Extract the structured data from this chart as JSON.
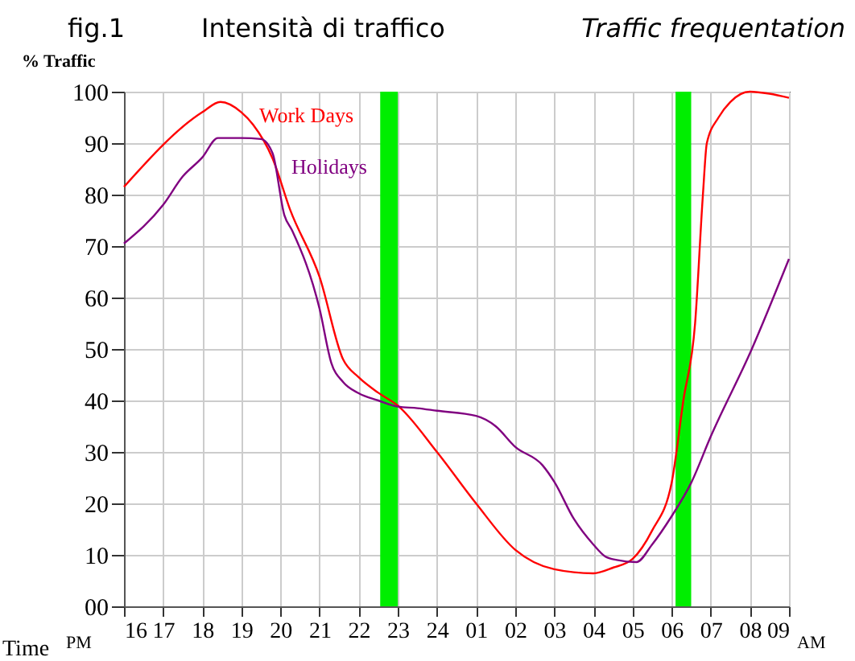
{
  "chart_data": {
    "type": "line",
    "title": "Intensità di traffico",
    "subtitle": "Traffic frequentation",
    "xlabel": "Time",
    "ylabel": "% Traffic",
    "annotations": [
      "fig.1",
      "PM",
      "AM"
    ],
    "xlim": [
      "--01-01T16:00",
      "--01-02T09:00"
    ],
    "xticks": [
      {
        "value": "--01-01T16:00",
        "label": "16"
      },
      {
        "value": "--01-01T17:00",
        "label": "17"
      },
      {
        "value": "--01-01T18:00",
        "label": "18"
      },
      {
        "value": "--01-01T19:00",
        "label": "19"
      },
      {
        "value": "--01-01T20:00",
        "label": "20"
      },
      {
        "value": "--01-01T21:00",
        "label": "21"
      },
      {
        "value": "--01-01T22:00",
        "label": "22"
      },
      {
        "value": "--01-01T23:00",
        "label": "23"
      },
      {
        "value": "--01-02T00:00",
        "label": "24"
      },
      {
        "value": "--01-02T01:00",
        "label": "01"
      },
      {
        "value": "--01-02T02:00",
        "label": "02"
      },
      {
        "value": "--01-02T03:00",
        "label": "03"
      },
      {
        "value": "--01-02T04:00",
        "label": "04"
      },
      {
        "value": "--01-02T05:00",
        "label": "05"
      },
      {
        "value": "--01-02T06:00",
        "label": "06"
      },
      {
        "value": "--01-02T07:00",
        "label": "07"
      },
      {
        "value": "--01-02T08:00",
        "label": "08"
      },
      {
        "value": "--01-02T09:00",
        "label": "09"
      }
    ],
    "ylim": [
      0,
      100
    ],
    "yticks": [
      {
        "value": 0,
        "label": "00"
      },
      10,
      20,
      30,
      40,
      50,
      60,
      70,
      80,
      90,
      100
    ],
    "grid": true,
    "legend": false,
    "marker": "none",
    "line_style": "solid",
    "bands": [
      {
        "axis": "x",
        "from": "--01-01T22:33",
        "to": "--01-01T23:00",
        "color": "#00ee00"
      },
      {
        "axis": "x",
        "from": "--01-02T06:06",
        "to": "--01-02T06:30",
        "color": "#00ee00"
      }
    ],
    "series": [
      {
        "name": "Work Days",
        "color": "#ff0000",
        "x": [
          "--01-01T16:00",
          "--01-01T18:00",
          "--01-01T18:28",
          "--01-01T19:00",
          "--01-01T19:18",
          "--01-01T19:48",
          "--01-01T20:15",
          "--01-01T21:00",
          "--01-01T21:36",
          "--01-01T22:00",
          "--01-01T22:30",
          "--01-01T23:00",
          "--01-02T00:00",
          "--01-02T01:00",
          "--01-02T02:00",
          "--01-02T03:00",
          "--01-02T04:00",
          "--01-02T04:30",
          "--01-02T05:00",
          "--01-02T05:30",
          "--01-02T06:00",
          "--01-02T06:18",
          "--01-02T06:36",
          "--01-02T06:48",
          "--01-02T06:54",
          "--01-02T07:12",
          "--01-02T07:30",
          "--01-02T08:00",
          "--01-02T08:30",
          "--01-02T09:00"
        ],
        "values": [
          81.5,
          96,
          98,
          96,
          93.6,
          87,
          77,
          64,
          48,
          44.5,
          41.5,
          39,
          30,
          20,
          11,
          7.2,
          6.4,
          7.5,
          9.2,
          14.7,
          24,
          40,
          55,
          80,
          90,
          95,
          98,
          100,
          99.6,
          98.8
        ]
      },
      {
        "name": "Holidays",
        "color": "#800080",
        "x": [
          "--01-01T16:00",
          "--01-01T17:00",
          "--01-01T17:30",
          "--01-01T18:00",
          "--01-01T18:24",
          "--01-01T19:00",
          "--01-01T19:30",
          "--01-01T19:48",
          "--01-01T20:06",
          "--01-01T20:18",
          "--01-01T21:00",
          "--01-01T21:18",
          "--01-01T21:36",
          "--01-01T22:00",
          "--01-01T22:30",
          "--01-01T23:00",
          "--01-01T23:30",
          "--01-02T00:00",
          "--01-02T01:00",
          "--01-02T01:30",
          "--01-02T02:00",
          "--01-02T02:42",
          "--01-02T03:00",
          "--01-02T03:30",
          "--01-02T04:00",
          "--01-02T04:18",
          "--01-02T04:36",
          "--01-02T05:06",
          "--01-02T05:30",
          "--01-02T06:00",
          "--01-02T06:30",
          "--01-02T07:00",
          "--01-02T08:03",
          "--01-02T09:00"
        ],
        "values": [
          70.5,
          78,
          83.5,
          87.2,
          91,
          91,
          90.8,
          88,
          76,
          73,
          57.8,
          47.3,
          43.6,
          41.4,
          40,
          38.8,
          38.5,
          38,
          37,
          35,
          31,
          27.4,
          24.2,
          17,
          12,
          9.7,
          9,
          8.6,
          12,
          17.5,
          24,
          33,
          50,
          67.5
        ]
      }
    ]
  }
}
